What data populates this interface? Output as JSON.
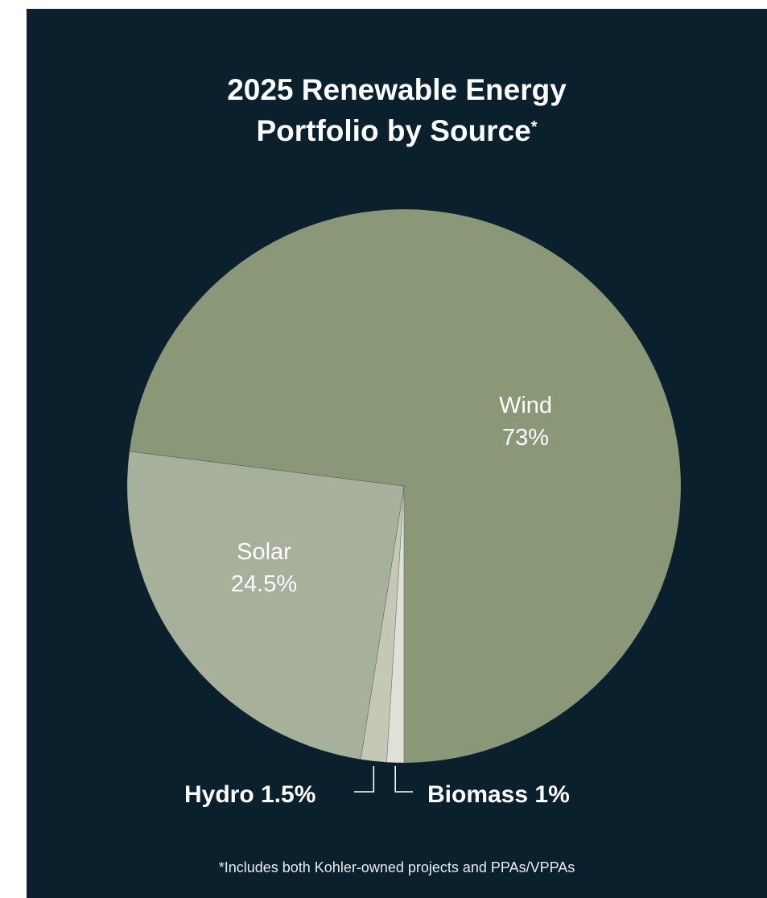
{
  "chart_data": {
    "type": "pie",
    "title_line1": "2025 Renewable Energy",
    "title_line2": "Portfolio by Source",
    "title_mark": "*",
    "slices": [
      {
        "name": "Wind",
        "value": 73,
        "label": "73%",
        "color": "#8a9878"
      },
      {
        "name": "Biomass",
        "value": 1,
        "label": "Biomass 1%",
        "color": "#dfe1d6"
      },
      {
        "name": "Hydro",
        "value": 1.5,
        "label": "Hydro 1.5%",
        "color": "#c4c8b4"
      },
      {
        "name": "Solar",
        "value": 24.5,
        "label": "24.5%",
        "color": "#a7b09b"
      }
    ],
    "start": "6 o'clock, clockwise order Biomass→Hydro→Solar→Wind",
    "footnote": "*Includes both Kohler-owned projects and PPAs/VPPAs"
  },
  "colors": {
    "background": "#0a202d",
    "text": "#ffffff",
    "leader": "#ffffff"
  }
}
